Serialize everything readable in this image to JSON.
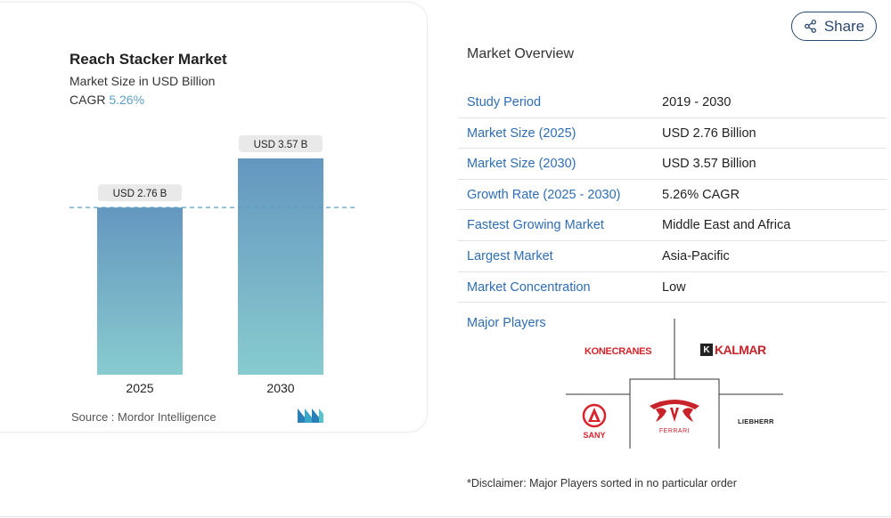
{
  "chart": {
    "title": "Reach Stacker Market",
    "subtitle": "Market Size in USD Billion",
    "cagr_label": "CAGR",
    "cagr_value": "5.26%",
    "source": "Source :  Mordor Intelligence"
  },
  "chart_data": {
    "type": "bar",
    "title": "Reach Stacker Market",
    "subtitle": "Market Size in USD Billion",
    "categories": [
      "2025",
      "2030"
    ],
    "values": [
      2.76,
      3.57
    ],
    "data_labels": [
      "USD 2.76 B",
      "USD 3.57 B"
    ],
    "ylabel": "",
    "xlabel": "",
    "ylim": [
      0,
      3.57
    ],
    "grid": false,
    "reference_line_value": 2.76,
    "bar_color_top": "#6497bf",
    "bar_color_bottom": "#88cbcf"
  },
  "share": {
    "label": "Share",
    "icon": "share-icon"
  },
  "overview": {
    "title": "Market Overview",
    "rows": [
      {
        "key": "Study Period",
        "value": "2019 - 2030"
      },
      {
        "key": "Market Size (2025)",
        "value": "USD 2.76 Billion"
      },
      {
        "key": "Market Size (2030)",
        "value": "USD 3.57 Billion"
      },
      {
        "key": "Growth Rate (2025 - 2030)",
        "value": "5.26% CAGR"
      },
      {
        "key": "Fastest Growing Market",
        "value": "Middle East and Africa"
      },
      {
        "key": "Largest Market",
        "value": "Asia-Pacific"
      },
      {
        "key": "Market Concentration",
        "value": "Low"
      }
    ]
  },
  "players": {
    "title": "Major Players",
    "logos": {
      "konecranes": "KONECRANES",
      "kalmar": "KALMAR",
      "sany": "SANY",
      "ferrari": "FERRARI",
      "liebherr": "LIEBHERR"
    }
  },
  "disclaimer": "*Disclaimer: Major Players sorted in no particular order",
  "colors": {
    "accent": "#2f6db4",
    "cagr": "#5b9ec9",
    "brand_red": "#d8232a"
  }
}
